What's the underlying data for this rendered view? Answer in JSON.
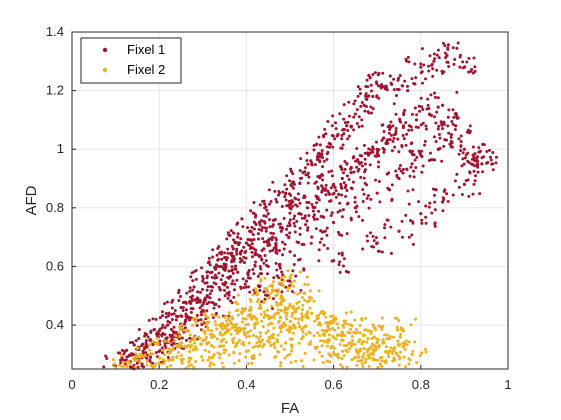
{
  "chart_data": {
    "type": "scatter",
    "xlabel": "FA",
    "ylabel": "AFD",
    "xlim": [
      0,
      1
    ],
    "ylim": [
      0.25,
      1.4
    ],
    "xticks": [
      "0",
      "0.2",
      "0.4",
      "0.6",
      "0.8",
      "1"
    ],
    "yticks": [
      "0.4",
      "0.6",
      "0.8",
      "1",
      "1.2",
      "1.4"
    ],
    "grid": true,
    "legend_position": "top-left",
    "series": [
      {
        "name": "Fixel 1",
        "color": "#A2142F",
        "points": [
          [
            0.1,
            0.26
          ],
          [
            0.12,
            0.28
          ],
          [
            0.14,
            0.3
          ],
          [
            0.15,
            0.27
          ],
          [
            0.16,
            0.33
          ],
          [
            0.18,
            0.35
          ],
          [
            0.18,
            0.29
          ],
          [
            0.2,
            0.38
          ],
          [
            0.2,
            0.31
          ],
          [
            0.22,
            0.4
          ],
          [
            0.22,
            0.34
          ],
          [
            0.24,
            0.43
          ],
          [
            0.24,
            0.36
          ],
          [
            0.25,
            0.46
          ],
          [
            0.26,
            0.39
          ],
          [
            0.27,
            0.48
          ],
          [
            0.28,
            0.42
          ],
          [
            0.28,
            0.53
          ],
          [
            0.3,
            0.45
          ],
          [
            0.3,
            0.55
          ],
          [
            0.31,
            0.5
          ],
          [
            0.32,
            0.58
          ],
          [
            0.33,
            0.47
          ],
          [
            0.34,
            0.6
          ],
          [
            0.34,
            0.52
          ],
          [
            0.35,
            0.63
          ],
          [
            0.36,
            0.56
          ],
          [
            0.37,
            0.66
          ],
          [
            0.38,
            0.58
          ],
          [
            0.38,
            0.7
          ],
          [
            0.39,
            0.62
          ],
          [
            0.4,
            0.68
          ],
          [
            0.4,
            0.55
          ],
          [
            0.41,
            0.72
          ],
          [
            0.42,
            0.64
          ],
          [
            0.43,
            0.75
          ],
          [
            0.44,
            0.66
          ],
          [
            0.45,
            0.78
          ],
          [
            0.45,
            0.6
          ],
          [
            0.46,
            0.7
          ],
          [
            0.47,
            0.82
          ],
          [
            0.48,
            0.72
          ],
          [
            0.49,
            0.85
          ],
          [
            0.5,
            0.74
          ],
          [
            0.5,
            0.65
          ],
          [
            0.51,
            0.88
          ],
          [
            0.52,
            0.78
          ],
          [
            0.53,
            0.92
          ],
          [
            0.54,
            0.8
          ],
          [
            0.55,
            0.95
          ],
          [
            0.55,
            0.7
          ],
          [
            0.56,
            0.84
          ],
          [
            0.57,
            0.98
          ],
          [
            0.58,
            0.86
          ],
          [
            0.59,
            1.02
          ],
          [
            0.6,
            0.88
          ],
          [
            0.6,
            0.75
          ],
          [
            0.61,
            1.05
          ],
          [
            0.62,
            0.9
          ],
          [
            0.63,
            1.08
          ],
          [
            0.64,
            0.92
          ],
          [
            0.65,
            1.12
          ],
          [
            0.65,
            0.8
          ],
          [
            0.66,
            0.95
          ],
          [
            0.67,
            1.15
          ],
          [
            0.68,
            0.98
          ],
          [
            0.69,
            1.18
          ],
          [
            0.7,
            1.0
          ],
          [
            0.7,
            0.85
          ],
          [
            0.71,
            1.22
          ],
          [
            0.72,
            1.02
          ],
          [
            0.73,
            1.25
          ],
          [
            0.74,
            1.05
          ],
          [
            0.75,
            0.9
          ],
          [
            0.76,
            1.08
          ],
          [
            0.77,
            1.2
          ],
          [
            0.78,
            0.95
          ],
          [
            0.79,
            1.1
          ],
          [
            0.8,
            1.28
          ],
          [
            0.8,
            0.98
          ],
          [
            0.82,
            1.12
          ],
          [
            0.83,
            1.3
          ],
          [
            0.84,
            1.0
          ],
          [
            0.85,
            1.15
          ],
          [
            0.86,
            1.32
          ],
          [
            0.87,
            1.05
          ],
          [
            0.88,
            1.08
          ],
          [
            0.89,
            1.28
          ],
          [
            0.9,
            1.0
          ],
          [
            0.92,
            0.98
          ],
          [
            0.93,
            0.96
          ],
          [
            0.94,
            0.95
          ],
          [
            0.5,
            0.55
          ],
          [
            0.45,
            0.5
          ],
          [
            0.6,
            0.62
          ],
          [
            0.7,
            0.68
          ],
          [
            0.75,
            0.72
          ],
          [
            0.8,
            0.78
          ],
          [
            0.85,
            0.82
          ],
          [
            0.9,
            0.88
          ]
        ]
      },
      {
        "name": "Fixel 2",
        "color": "#EDB120",
        "points": [
          [
            0.12,
            0.26
          ],
          [
            0.15,
            0.28
          ],
          [
            0.18,
            0.3
          ],
          [
            0.2,
            0.27
          ],
          [
            0.22,
            0.32
          ],
          [
            0.24,
            0.29
          ],
          [
            0.25,
            0.34
          ],
          [
            0.27,
            0.31
          ],
          [
            0.28,
            0.36
          ],
          [
            0.3,
            0.28
          ],
          [
            0.3,
            0.38
          ],
          [
            0.32,
            0.33
          ],
          [
            0.33,
            0.4
          ],
          [
            0.34,
            0.3
          ],
          [
            0.35,
            0.37
          ],
          [
            0.36,
            0.42
          ],
          [
            0.37,
            0.34
          ],
          [
            0.38,
            0.39
          ],
          [
            0.39,
            0.44
          ],
          [
            0.4,
            0.31
          ],
          [
            0.4,
            0.36
          ],
          [
            0.41,
            0.46
          ],
          [
            0.42,
            0.4
          ],
          [
            0.43,
            0.33
          ],
          [
            0.44,
            0.48
          ],
          [
            0.45,
            0.38
          ],
          [
            0.45,
            0.43
          ],
          [
            0.46,
            0.52
          ],
          [
            0.47,
            0.35
          ],
          [
            0.48,
            0.45
          ],
          [
            0.48,
            0.5
          ],
          [
            0.49,
            0.4
          ],
          [
            0.5,
            0.3
          ],
          [
            0.5,
            0.47
          ],
          [
            0.51,
            0.55
          ],
          [
            0.52,
            0.42
          ],
          [
            0.53,
            0.36
          ],
          [
            0.54,
            0.48
          ],
          [
            0.55,
            0.44
          ],
          [
            0.56,
            0.32
          ],
          [
            0.57,
            0.4
          ],
          [
            0.58,
            0.38
          ],
          [
            0.59,
            0.35
          ],
          [
            0.6,
            0.42
          ],
          [
            0.61,
            0.3
          ],
          [
            0.62,
            0.37
          ],
          [
            0.63,
            0.33
          ],
          [
            0.64,
            0.4
          ],
          [
            0.65,
            0.29
          ],
          [
            0.66,
            0.35
          ],
          [
            0.67,
            0.32
          ],
          [
            0.68,
            0.38
          ],
          [
            0.69,
            0.3
          ],
          [
            0.7,
            0.34
          ],
          [
            0.72,
            0.31
          ],
          [
            0.73,
            0.36
          ],
          [
            0.74,
            0.28
          ],
          [
            0.75,
            0.33
          ],
          [
            0.76,
            0.38
          ],
          [
            0.78,
            0.3
          ]
        ]
      }
    ]
  }
}
